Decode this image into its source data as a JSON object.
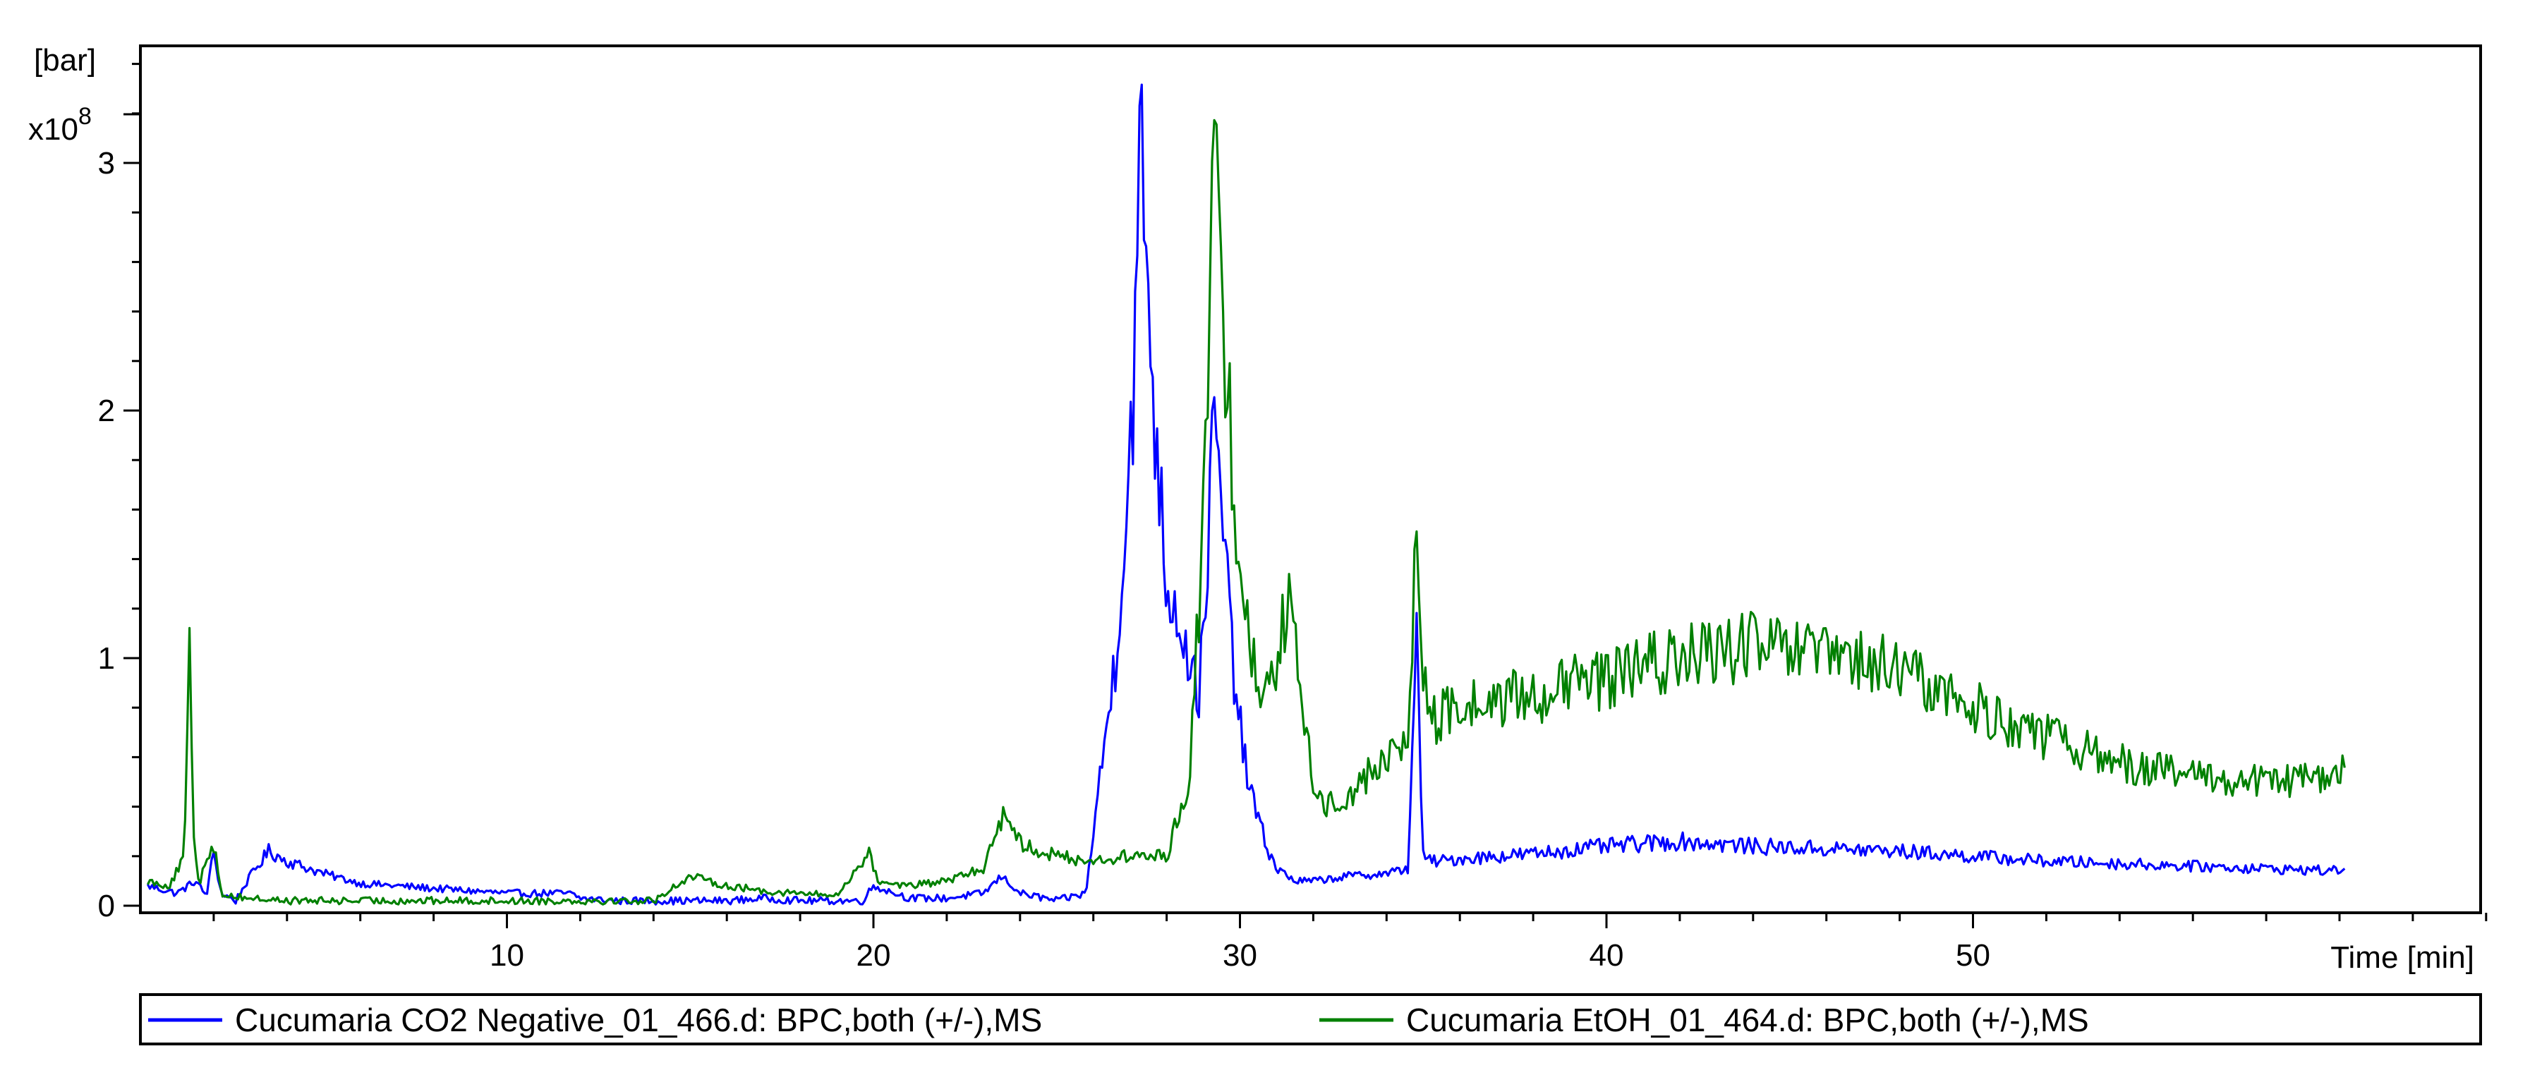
{
  "chart_data": {
    "type": "line",
    "y_unit_label": "[bar]",
    "y_multiplier_base": "x10",
    "y_multiplier_exp": "8",
    "xlabel": "Time [min]",
    "xlim": [
      0,
      64.8
    ],
    "ylim": [
      0,
      3.5
    ],
    "x_ticks": [
      10,
      20,
      30,
      40,
      50
    ],
    "y_ticks": [
      0,
      1,
      2,
      3
    ],
    "x_minor_step": 2,
    "y_minor_step": 0.2,
    "grid": false,
    "legend_position": "bottom",
    "series": [
      {
        "name": "Cucumaria CO2 Negative_01_466.d: BPC,both (+/-),MS",
        "color": "#0000ff",
        "x": [
          0.2,
          1.0,
          1.5,
          1.8,
          2.0,
          2.2,
          2.6,
          3.0,
          3.5,
          4.0,
          5.0,
          6.0,
          7.0,
          8.0,
          9.0,
          10.0,
          11.0,
          11.7,
          12.0,
          13.0,
          14.0,
          15.0,
          16.0,
          17.0,
          18.0,
          19.0,
          19.7,
          20.0,
          21.0,
          22.0,
          23.0,
          23.5,
          24.0,
          25.0,
          25.8,
          26.0,
          26.3,
          26.6,
          26.9,
          27.1,
          27.3,
          27.5,
          27.7,
          28.0,
          28.3,
          28.6,
          28.9,
          29.1,
          29.3,
          29.5,
          29.8,
          30.1,
          30.4,
          30.7,
          31.0,
          31.5,
          32.0,
          33.0,
          34.0,
          34.6,
          34.8,
          35.0,
          35.2,
          35.5,
          36.0,
          38.0,
          40.0,
          42.0,
          44.0,
          46.0,
          48.0,
          50.0,
          52.0,
          54.0,
          56.0,
          58.0,
          60.0,
          60.2
        ],
        "y": [
          0.08,
          0.05,
          0.1,
          0.04,
          0.22,
          0.05,
          0.02,
          0.12,
          0.22,
          0.18,
          0.13,
          0.09,
          0.08,
          0.07,
          0.06,
          0.05,
          0.05,
          0.05,
          0.03,
          0.02,
          0.02,
          0.02,
          0.02,
          0.03,
          0.02,
          0.02,
          0.02,
          0.08,
          0.03,
          0.03,
          0.05,
          0.12,
          0.05,
          0.02,
          0.05,
          0.3,
          0.65,
          1.0,
          1.6,
          2.1,
          3.1,
          2.5,
          1.9,
          1.3,
          1.2,
          1.0,
          0.85,
          1.4,
          1.95,
          1.6,
          1.0,
          0.6,
          0.4,
          0.25,
          0.15,
          0.1,
          0.1,
          0.12,
          0.13,
          0.15,
          1.15,
          0.2,
          0.18,
          0.18,
          0.19,
          0.21,
          0.24,
          0.26,
          0.24,
          0.23,
          0.22,
          0.2,
          0.18,
          0.17,
          0.16,
          0.15,
          0.14,
          0.18
        ]
      },
      {
        "name": "Cucumaria EtOH_01_464.d: BPC,both (+/-),MS",
        "color": "#008000",
        "x": [
          0.2,
          0.8,
          1.2,
          1.35,
          1.45,
          1.6,
          1.8,
          2.0,
          2.2,
          2.5,
          3.0,
          4.0,
          5.0,
          6.0,
          7.0,
          8.0,
          9.0,
          10.0,
          11.0,
          12.0,
          13.0,
          14.0,
          15.0,
          16.0,
          17.0,
          18.0,
          19.0,
          19.9,
          20.1,
          21.0,
          22.0,
          23.0,
          23.6,
          24.0,
          25.0,
          26.0,
          27.0,
          28.0,
          28.6,
          29.0,
          29.3,
          29.6,
          29.9,
          30.2,
          30.5,
          31.0,
          31.3,
          31.7,
          32.0,
          32.3,
          33.0,
          34.0,
          34.6,
          34.8,
          35.0,
          35.3,
          36.0,
          38.0,
          40.0,
          42.0,
          44.0,
          46.0,
          48.0,
          50.0,
          52.0,
          54.0,
          56.0,
          58.0,
          60.0,
          60.2
        ],
        "y": [
          0.1,
          0.08,
          0.2,
          1.05,
          0.3,
          0.08,
          0.2,
          0.25,
          0.05,
          0.04,
          0.03,
          0.02,
          0.02,
          0.02,
          0.02,
          0.02,
          0.02,
          0.02,
          0.02,
          0.02,
          0.02,
          0.02,
          0.12,
          0.08,
          0.06,
          0.05,
          0.04,
          0.22,
          0.1,
          0.08,
          0.1,
          0.15,
          0.4,
          0.25,
          0.2,
          0.18,
          0.2,
          0.2,
          0.5,
          1.5,
          3.1,
          2.2,
          1.6,
          1.1,
          0.9,
          1.0,
          1.25,
          0.8,
          0.5,
          0.4,
          0.45,
          0.6,
          0.65,
          1.55,
          0.9,
          0.75,
          0.8,
          0.85,
          0.92,
          1.0,
          1.05,
          1.0,
          0.95,
          0.8,
          0.68,
          0.58,
          0.52,
          0.5,
          0.52,
          0.58
        ]
      }
    ]
  }
}
